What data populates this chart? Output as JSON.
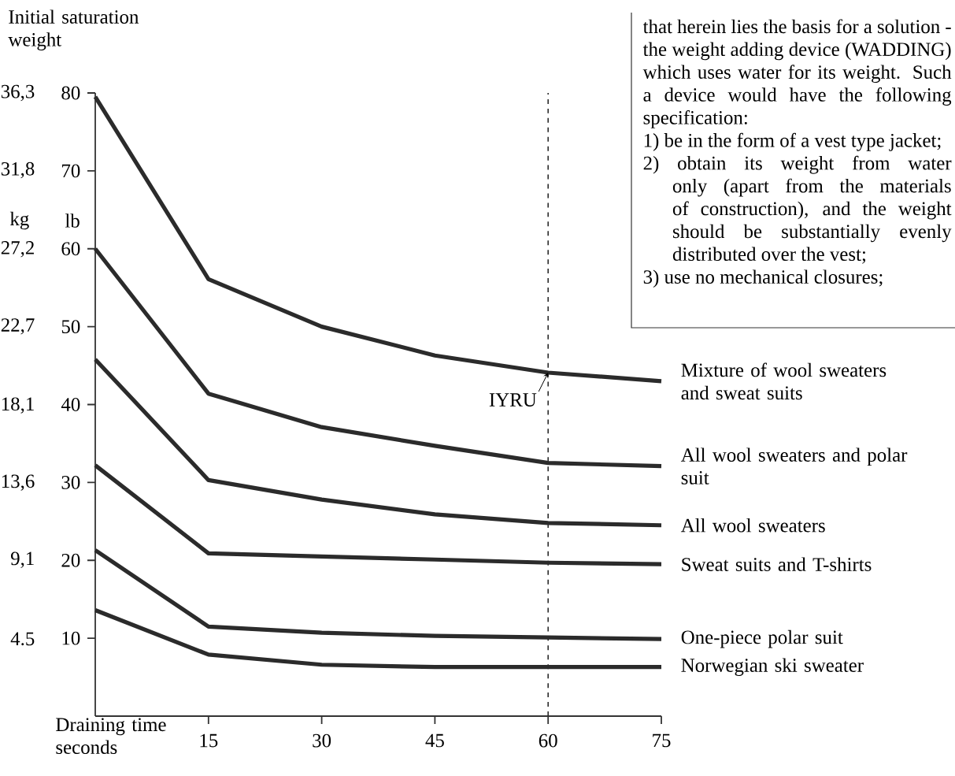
{
  "chart_data": {
    "type": "line",
    "title": "Initial saturation weight",
    "xlabel": "Draining time seconds",
    "ylabel": "lb",
    "y2label": "kg",
    "x": [
      0,
      15,
      30,
      45,
      60,
      75
    ],
    "series": [
      {
        "name": "Mixture of wool sweaters and sweat suits",
        "color": "#2b2b2b",
        "values": [
          79.5,
          56.1,
          50.0,
          46.3,
          44.1,
          43.0
        ]
      },
      {
        "name": "All wool sweaters and polar suit",
        "color": "#2b2b2b",
        "values": [
          60.0,
          41.4,
          37.1,
          34.7,
          32.5,
          32.1
        ]
      },
      {
        "name": "All wool sweaters",
        "color": "#2b2b2b",
        "values": [
          45.8,
          30.3,
          27.8,
          25.9,
          24.8,
          24.5
        ]
      },
      {
        "name": "Sweat suits and T-shirts",
        "color": "#2b2b2b",
        "values": [
          32.2,
          20.9,
          20.5,
          20.1,
          19.7,
          19.5
        ]
      },
      {
        "name": "One-piece polar suit",
        "color": "#2b2b2b",
        "values": [
          21.3,
          11.5,
          10.7,
          10.3,
          10.1,
          9.9
        ]
      },
      {
        "name": "Norwegian ski sweater",
        "color": "#2b2b2b",
        "values": [
          13.6,
          7.9,
          6.6,
          6.3,
          6.3,
          6.3
        ]
      }
    ],
    "xlim": [
      0,
      75
    ],
    "xticks": [
      15,
      30,
      45,
      60,
      75
    ],
    "ylim": [
      0,
      80
    ],
    "yticks": [
      10,
      20,
      30,
      40,
      50,
      60,
      70,
      80
    ],
    "y2lim": [
      0,
      36.3
    ],
    "y2ticks": [
      {
        "value": 4.5,
        "label": "4.5"
      },
      {
        "value": 9.1,
        "label": "9,1"
      },
      {
        "value": 13.6,
        "label": "13,6"
      },
      {
        "value": 18.1,
        "label": "18,1"
      },
      {
        "value": 22.7,
        "label": "22,7"
      },
      {
        "value": 27.2,
        "label": "27,2"
      },
      {
        "value": 31.8,
        "label": "31,8"
      },
      {
        "value": 36.3,
        "label": "36,3"
      }
    ],
    "ref_lines": [
      {
        "axis": "x",
        "value": 60,
        "line_style": "dashed",
        "color": "#2b2b2b"
      }
    ],
    "annotations": [
      {
        "text": "IYRU",
        "x": 60,
        "y": 44.1
      },
      "that herein lies the basis for a solution - the weight adding device (WADDING) which uses water for its weight. Such a device would have the following specification:",
      "1) be in the form of a vest type jacket;",
      "2) obtain its weight from water only (apart from the materials of construction), and the weight should be substantially evenly distributed over the vest;",
      "3) use no mechanical closures;"
    ]
  }
}
